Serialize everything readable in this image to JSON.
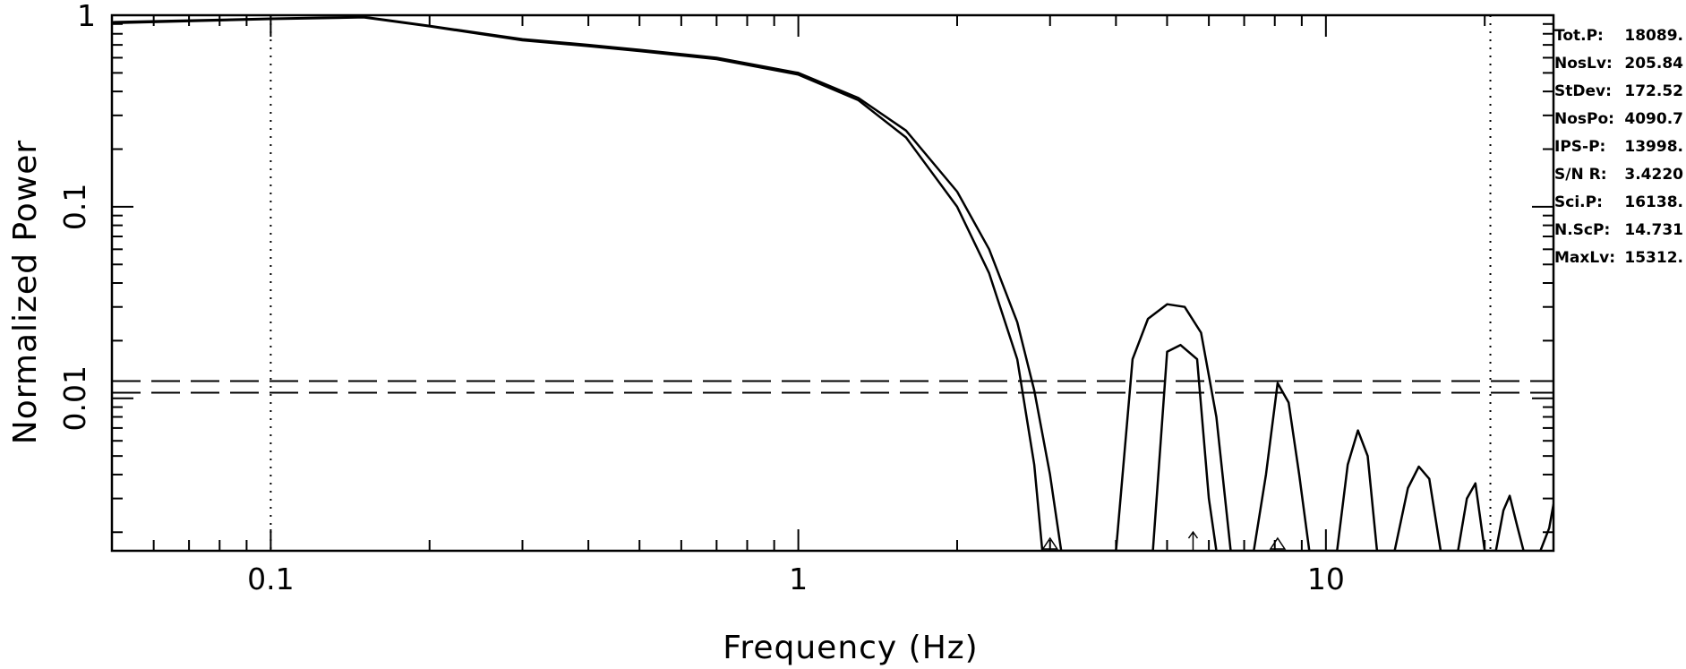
{
  "chart_data": {
    "type": "line",
    "title": "",
    "xlabel": "Frequency (Hz)",
    "ylabel": "Normalized Power",
    "x_scale": "log",
    "y_scale": "log",
    "xlim": [
      0.05,
      27
    ],
    "ylim": [
      0.0016,
      1
    ],
    "x_tick_labels": [
      "0.1",
      "1",
      "10"
    ],
    "y_tick_labels": [
      "1",
      "0.1",
      "0.01"
    ],
    "grid": false,
    "legend": "none",
    "reference_lines": {
      "vertical_dotted": [
        0.1,
        20.5
      ],
      "horizontal_dashed": [
        0.0123,
        0.0107
      ]
    },
    "markers": {
      "triangles": [
        3.0,
        8.1
      ],
      "arrow": 5.6
    },
    "series": [
      {
        "x": [
          0.05,
          0.1,
          0.15,
          0.2,
          0.3,
          0.4,
          0.5,
          0.7,
          1.0,
          1.3,
          1.6,
          2.0,
          2.3,
          2.6,
          2.8,
          3.0,
          3.15,
          3.3,
          3.5,
          4.0,
          4.3,
          4.6,
          5.0,
          5.4,
          5.8,
          6.2,
          6.6,
          7.0,
          7.3,
          7.7,
          8.1,
          8.5,
          8.9,
          9.3,
          10.5,
          11.0,
          11.5,
          12.0,
          12.5,
          13.5,
          14.3,
          15.0,
          15.7,
          16.5,
          17.8,
          18.5,
          19.2,
          20.0,
          21.0,
          21.7,
          22.3,
          23.0,
          23.7,
          24.5,
          25.5,
          26.5,
          27.0
        ],
        "y": [
          0.92,
          0.96,
          0.98,
          0.88,
          0.75,
          0.7,
          0.66,
          0.6,
          0.5,
          0.37,
          0.25,
          0.12,
          0.06,
          0.025,
          0.011,
          0.004,
          0.0016,
          0.0016,
          0.0016,
          0.0016,
          0.016,
          0.026,
          0.031,
          0.03,
          0.022,
          0.008,
          0.0016,
          0.0016,
          0.0016,
          0.004,
          0.012,
          0.0095,
          0.004,
          0.0016,
          0.0016,
          0.0045,
          0.0068,
          0.005,
          0.0016,
          0.0016,
          0.0034,
          0.0044,
          0.0038,
          0.0016,
          0.0016,
          0.003,
          0.0036,
          0.0016,
          0.0016,
          0.0026,
          0.0031,
          0.0022,
          0.0016,
          0.0016,
          0.0016,
          0.0021,
          0.0028
        ]
      },
      {
        "x": [
          0.05,
          0.1,
          0.15,
          0.2,
          0.3,
          0.4,
          0.5,
          0.7,
          1.0,
          1.3,
          1.6,
          2.0,
          2.3,
          2.6,
          2.8,
          2.9,
          3.1,
          4.7,
          5.0,
          5.3,
          5.7,
          6.0,
          6.2
        ],
        "y": [
          0.91,
          0.955,
          0.975,
          0.875,
          0.74,
          0.69,
          0.65,
          0.59,
          0.49,
          0.36,
          0.23,
          0.1,
          0.045,
          0.016,
          0.0045,
          0.0016,
          0.0016,
          0.0016,
          0.0175,
          0.019,
          0.016,
          0.003,
          0.0016
        ]
      }
    ]
  },
  "stats": [
    {
      "label": "Tot.P:",
      "value": "18089."
    },
    {
      "label": "NosLv:",
      "value": "205.84"
    },
    {
      "label": "StDev:",
      "value": "172.52"
    },
    {
      "label": "NosPo:",
      "value": "4090.7"
    },
    {
      "label": "IPS-P:",
      "value": "13998."
    },
    {
      "label": "S/N R:",
      "value": "3.4220"
    },
    {
      "label": "Sci.P:",
      "value": "16138."
    },
    {
      "label": "N.ScP:",
      "value": "14.731"
    },
    {
      "label": "MaxLv:",
      "value": "15312."
    }
  ],
  "colors": {
    "line": "#000000",
    "background": "#ffffff"
  }
}
